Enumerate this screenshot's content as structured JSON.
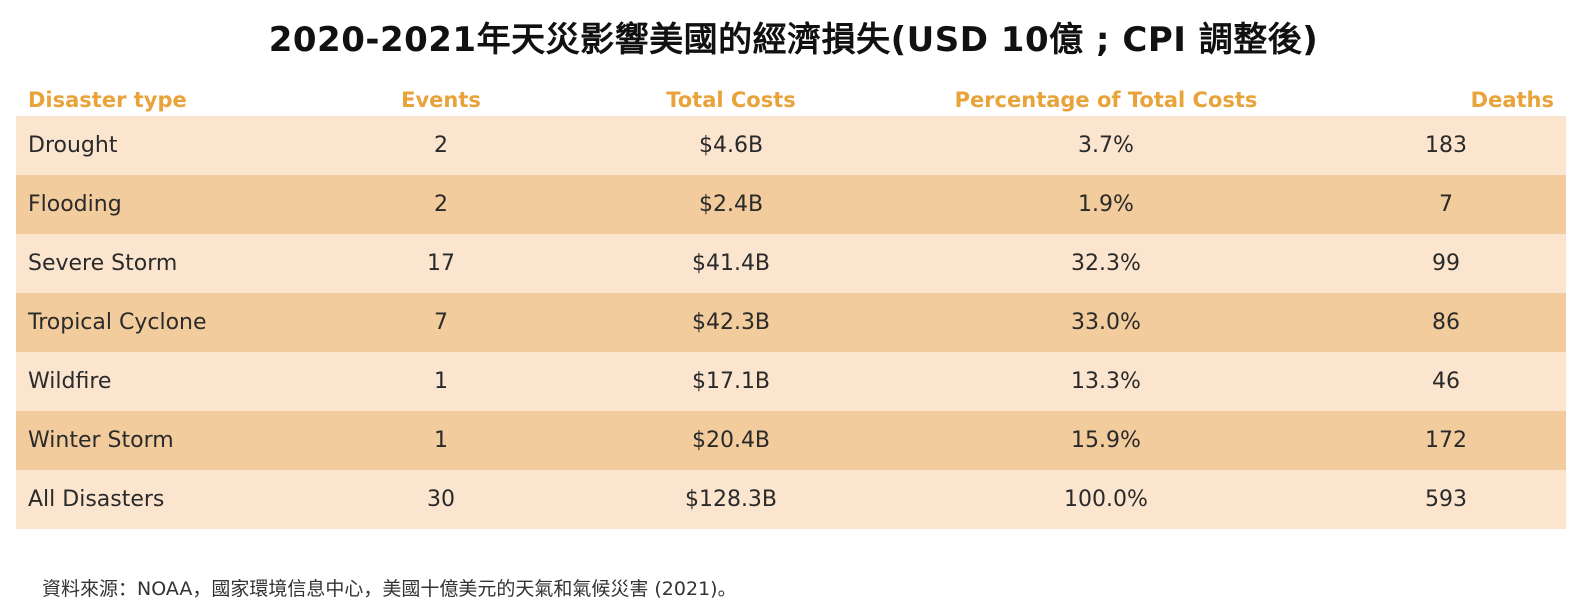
{
  "title": "2020-2021年天災影響美國的經濟損失(USD 10億 ; CPI 調整後)",
  "table": {
    "headers": [
      "Disaster type",
      "Events",
      "Total Costs",
      "Percentage of Total Costs",
      "Deaths"
    ],
    "rows": [
      [
        "Drought",
        "2",
        "$4.6B",
        "3.7%",
        "183"
      ],
      [
        "Flooding",
        "2",
        "$2.4B",
        "1.9%",
        "7"
      ],
      [
        "Severe Storm",
        "17",
        "$41.4B",
        "32.3%",
        "99"
      ],
      [
        "Tropical Cyclone",
        "7",
        "$42.3B",
        "33.0%",
        "86"
      ],
      [
        "Wildfire",
        "1",
        "$17.1B",
        "13.3%",
        "46"
      ],
      [
        "Winter Storm",
        "1",
        "$20.4B",
        "15.9%",
        "172"
      ],
      [
        "All Disasters",
        "30",
        "$128.3B",
        "100.0%",
        "593"
      ]
    ]
  },
  "source": "資料來源：NOAA，國家環境信息中心，美國十億美元的天氣和氣候災害 (2021)。",
  "colors": {
    "header_text": "#e8a33b",
    "row_light": "#fbe5cf",
    "row_dark": "#f2cc9c"
  }
}
